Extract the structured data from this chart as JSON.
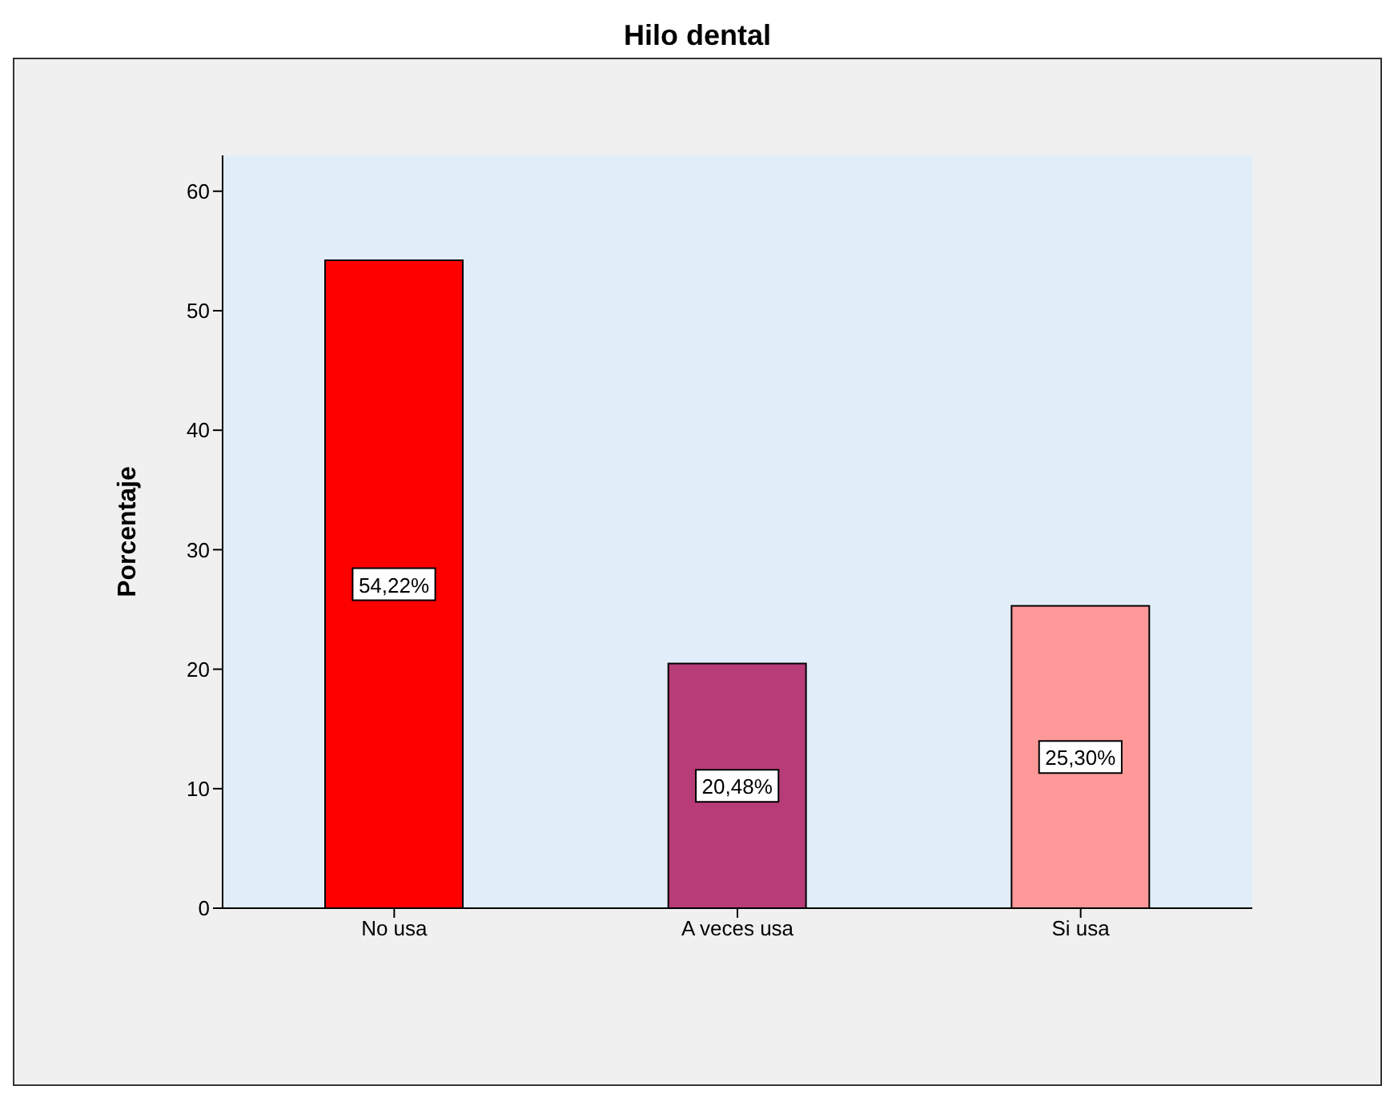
{
  "chart_data": {
    "type": "bar",
    "title": "Hilo dental",
    "ylabel": "Porcentaje",
    "categories": [
      "No usa",
      "A veces usa",
      "Si usa"
    ],
    "values": [
      54.22,
      20.48,
      25.3
    ],
    "colors": [
      "#ff0000",
      "#b83c78",
      "#ff9999"
    ],
    "value_labels": [
      "54,22%",
      "20,48%",
      "25,30%"
    ],
    "ylim": [
      0,
      63
    ],
    "yticks": [
      0,
      10,
      20,
      30,
      40,
      50,
      60
    ],
    "grid": false,
    "legend": false
  }
}
